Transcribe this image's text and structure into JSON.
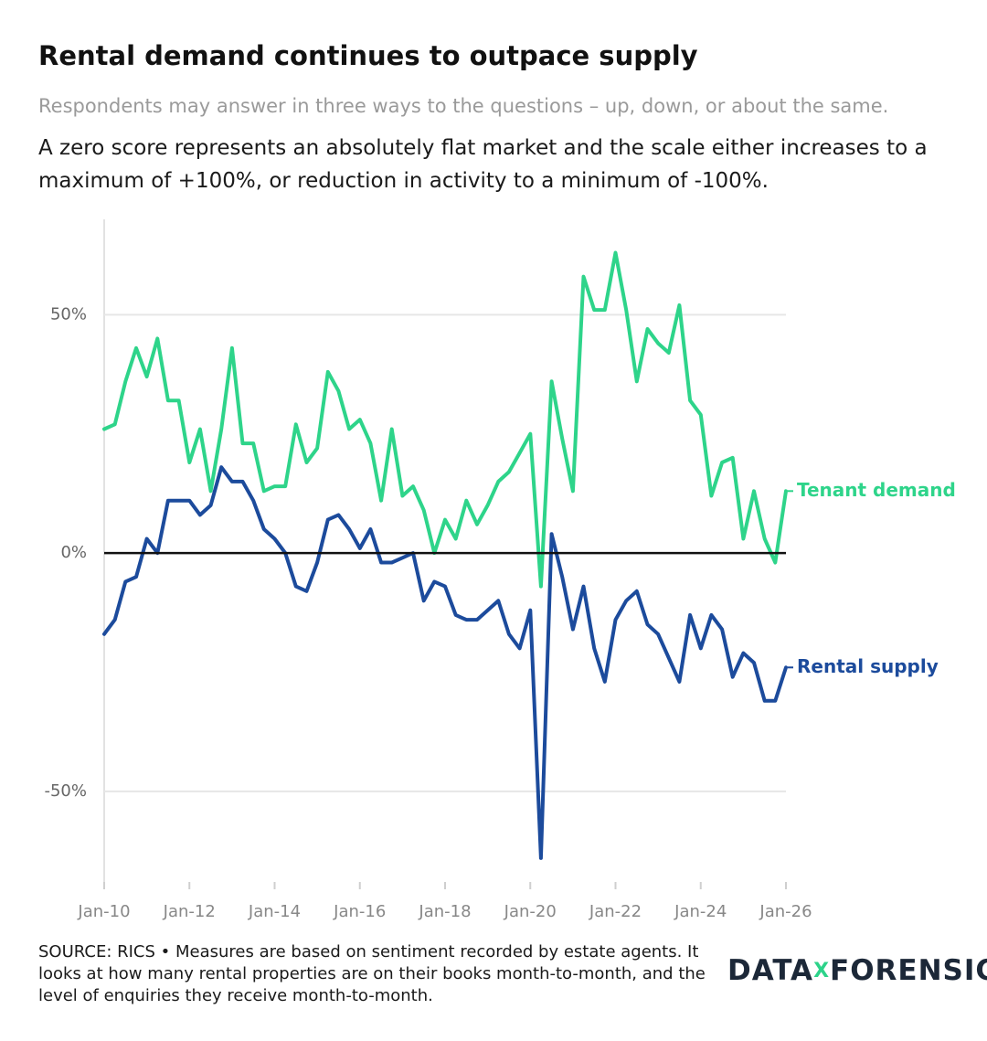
{
  "chart_data": {
    "type": "line",
    "title": "Rental demand continues to outpace supply",
    "subtitle": "Respondents may answer in three ways to the questions – up, down, or about the same.",
    "description": "A zero score represents an absolutely flat market and the scale either increases to a maximum of +100%, or reduction in activity to a minimum of -100%.",
    "source": "SOURCE: RICS • Measures are based on sentiment recorded by estate agents. It looks at how many rental properties are on their books month-to-month, and the level of enquiries they receive month-to-month.",
    "logo": [
      "DATA",
      "X",
      "FORENSICS"
    ],
    "x": [
      2010,
      2010.25,
      2010.5,
      2010.75,
      2011,
      2011.25,
      2011.5,
      2011.75,
      2012,
      2012.25,
      2012.5,
      2012.75,
      2013,
      2013.25,
      2013.5,
      2013.75,
      2014,
      2014.25,
      2014.5,
      2014.75,
      2015,
      2015.25,
      2015.5,
      2015.75,
      2016,
      2016.25,
      2016.5,
      2016.75,
      2017,
      2017.25,
      2017.5,
      2017.75,
      2018,
      2018.25,
      2018.5,
      2018.75,
      2019,
      2019.25,
      2019.5,
      2019.75,
      2020,
      2020.25,
      2020.5,
      2020.75,
      2021,
      2021.25,
      2021.5,
      2021.75,
      2022,
      2022.25,
      2022.5,
      2022.75,
      2023,
      2023.25,
      2023.5,
      2023.75,
      2024,
      2024.25,
      2024.5,
      2024.75,
      2025,
      2025.25,
      2025.5,
      2025.75,
      2026
    ],
    "series": [
      {
        "name": "Tenant demand",
        "color": "#2ed48a",
        "values": [
          26,
          27,
          36,
          43,
          37,
          45,
          32,
          32,
          19,
          26,
          13,
          26,
          43,
          23,
          23,
          13,
          14,
          14,
          27,
          19,
          22,
          38,
          34,
          26,
          28,
          23,
          11,
          26,
          12,
          14,
          9,
          0,
          7,
          3,
          11,
          6,
          10,
          15,
          17,
          21,
          25,
          -7,
          36,
          24,
          13,
          58,
          51,
          51,
          63,
          51,
          36,
          47,
          44,
          42,
          52,
          32,
          29,
          12,
          19,
          20,
          3,
          13,
          3,
          -2,
          13
        ]
      },
      {
        "name": "Rental supply",
        "color": "#1c4b9c",
        "values": [
          -17,
          -14,
          -6,
          -5,
          3,
          0,
          11,
          11,
          11,
          8,
          10,
          18,
          15,
          15,
          11,
          5,
          3,
          0,
          -7,
          -8,
          -2,
          7,
          8,
          5,
          1,
          5,
          -2,
          -2,
          -1,
          0,
          -10,
          -6,
          -7,
          -13,
          -14,
          -14,
          -12,
          -10,
          -17,
          -20,
          -12,
          -64,
          4,
          -5,
          -16,
          -7,
          -20,
          -27,
          -14,
          -10,
          -8,
          -15,
          -17,
          -22,
          -27,
          -13,
          -20,
          -13,
          -16,
          -26,
          -21,
          -23,
          -31,
          -31,
          -24
        ]
      }
    ],
    "xlim": [
      2010,
      2026
    ],
    "xticks": [
      {
        "value": 2010,
        "label": "Jan-10"
      },
      {
        "value": 2012,
        "label": "Jan-12"
      },
      {
        "value": 2014,
        "label": "Jan-14"
      },
      {
        "value": 2016,
        "label": "Jan-16"
      },
      {
        "value": 2018,
        "label": "Jan-18"
      },
      {
        "value": 2020,
        "label": "Jan-20"
      },
      {
        "value": 2022,
        "label": "Jan-22"
      },
      {
        "value": 2024,
        "label": "Jan-24"
      },
      {
        "value": 2026,
        "label": "Jan-26"
      }
    ],
    "ylim": [
      -69,
      70
    ],
    "yticks": [
      {
        "value": -50,
        "label": "-50%"
      },
      {
        "value": 0,
        "label": "0%"
      },
      {
        "value": 50,
        "label": "50%"
      }
    ],
    "grid": true
  }
}
